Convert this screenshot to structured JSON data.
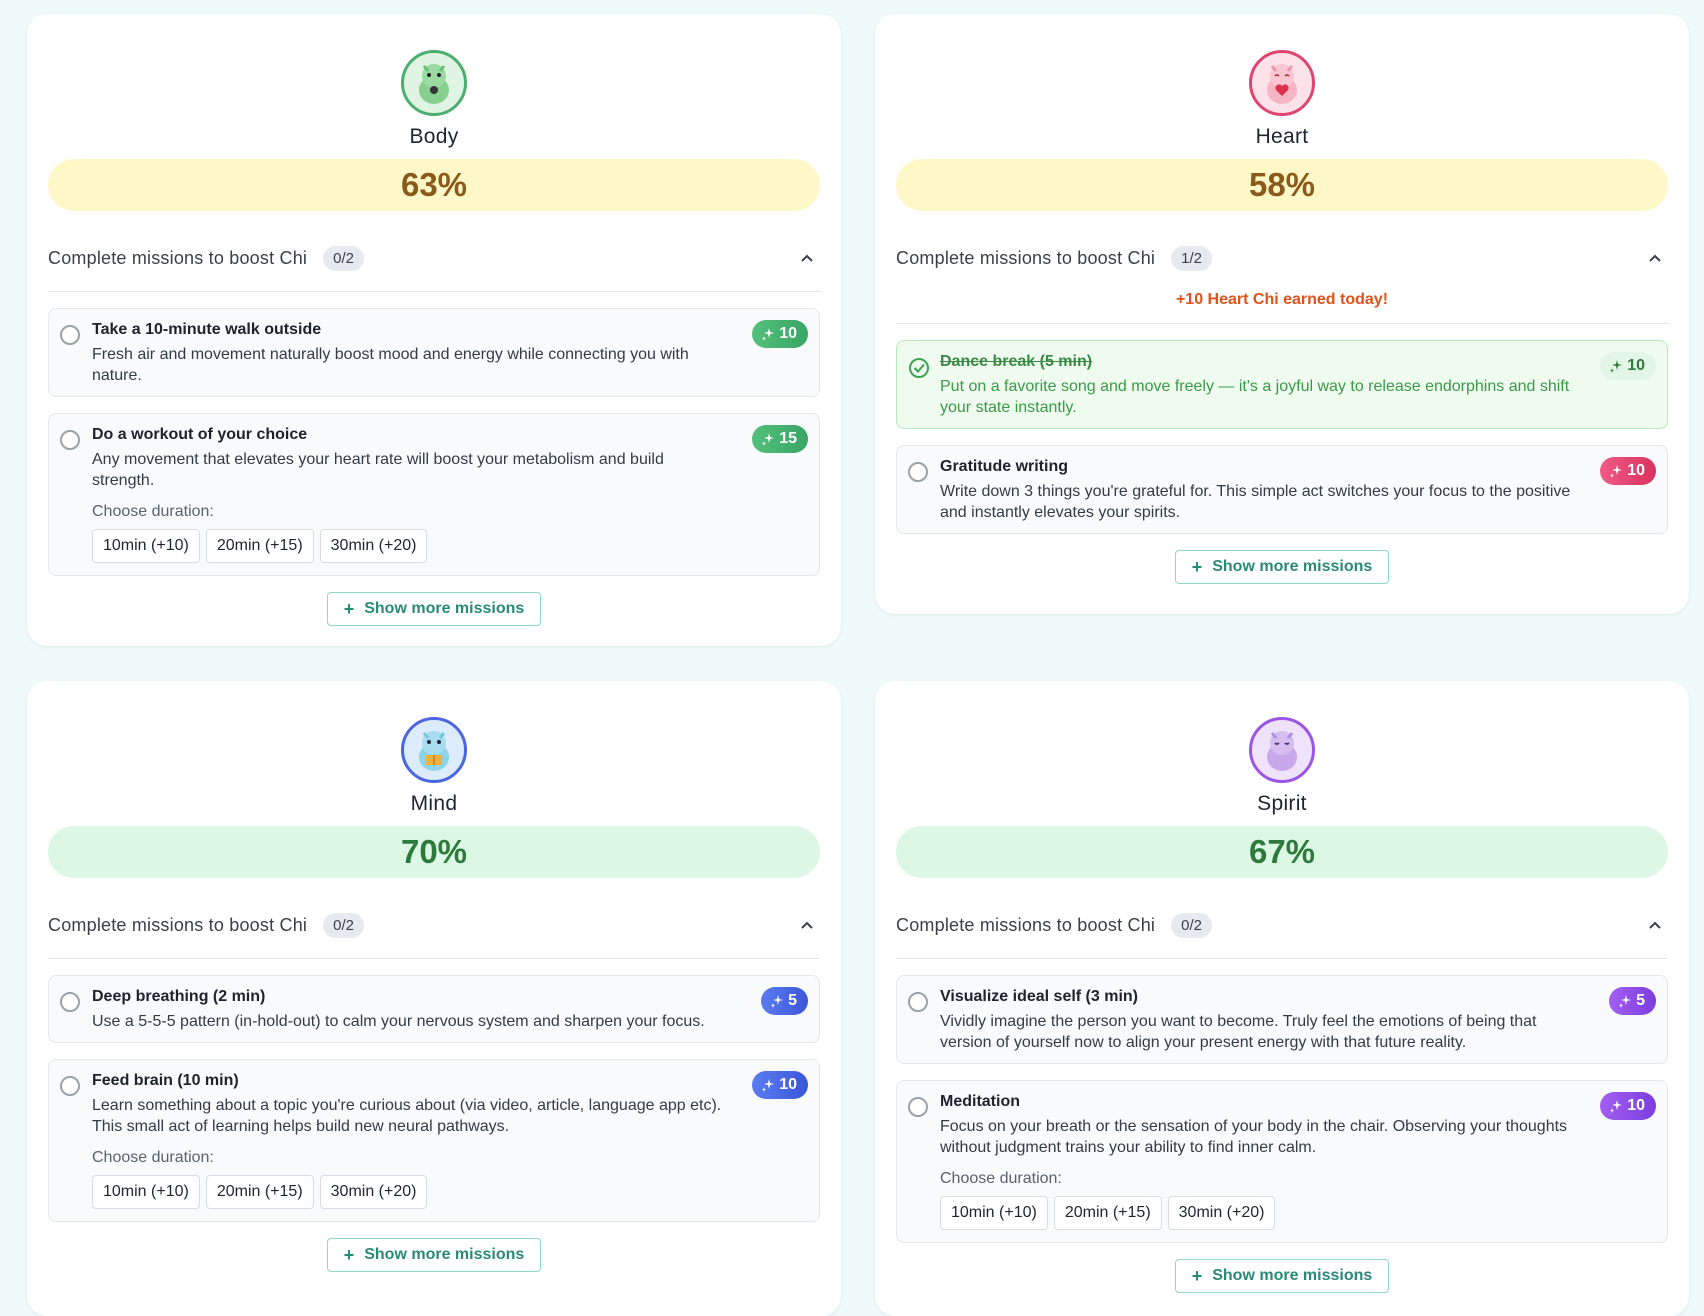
{
  "header_title": "Complete missions to boost Chi",
  "choose_duration": "Choose duration:",
  "show_more": "Show more missions",
  "durations": [
    "10min (+10)",
    "20min (+15)",
    "30min (+20)"
  ],
  "cards": {
    "body": {
      "name": "Body",
      "chi": "63%",
      "count": "0/2",
      "missions": [
        {
          "title": "Take a 10-minute walk outside",
          "desc": "Fresh air and movement naturally boost mood and energy while connecting you with nature.",
          "reward": "10"
        },
        {
          "title": "Do a workout of your choice",
          "desc": "Any movement that elevates your heart rate will boost your metabolism and build strength.",
          "reward": "15"
        }
      ]
    },
    "heart": {
      "name": "Heart",
      "chi": "58%",
      "count": "1/2",
      "earned": "+10 Heart Chi earned today!",
      "missions": [
        {
          "title": "Dance break (5 min)",
          "desc": "Put on a favorite song and move freely — it's a joyful way to release endorphins and shift your state instantly.",
          "reward": "10"
        },
        {
          "title": "Gratitude writing",
          "desc": "Write down 3 things you're grateful for. This simple act switches your focus to the positive and instantly elevates your spirits.",
          "reward": "10"
        }
      ]
    },
    "mind": {
      "name": "Mind",
      "chi": "70%",
      "count": "0/2",
      "missions": [
        {
          "title": "Deep breathing (2 min)",
          "desc": "Use a 5-5-5 pattern (in-hold-out) to calm your nervous system and sharpen your focus.",
          "reward": "5"
        },
        {
          "title": "Feed brain (10 min)",
          "desc": "Learn something about a topic you're curious about (via video, article, language app etc). This small act of learning helps build new neural pathways.",
          "reward": "10"
        }
      ]
    },
    "spirit": {
      "name": "Spirit",
      "chi": "67%",
      "count": "0/2",
      "missions": [
        {
          "title": "Visualize ideal self (3 min)",
          "desc": "Vividly imagine the person you want to become. Truly feel the emotions of being that version of yourself now to align your present energy with that future reality.",
          "reward": "5"
        },
        {
          "title": "Meditation",
          "desc": "Focus on your breath or the sensation of your body in the chair. Observing your thoughts without judgment trains your ability to find inner calm.",
          "reward": "10"
        }
      ]
    }
  },
  "colors": {
    "body": "#4caf6e",
    "heart": "#e0456f",
    "mind": "#4a66e0",
    "spirit": "#9a55e8"
  },
  "icons": {
    "avatar": "dragon-mascot-icon",
    "reward": "sparkle-icon",
    "collapse": "chevron-up-icon",
    "done": "check-circle-icon",
    "add": "plus-icon"
  }
}
